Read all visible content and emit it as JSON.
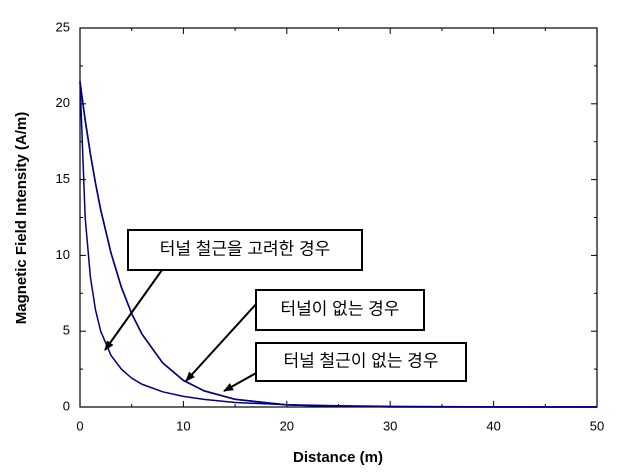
{
  "chart_data": {
    "type": "line",
    "x_label": "Distance (m)",
    "y_label": "Magnetic Field Intensity (A/m)",
    "x": [
      0,
      0.5,
      1,
      1.5,
      2,
      3,
      4,
      5,
      6,
      8,
      10,
      12,
      15,
      20,
      25,
      30,
      40,
      50
    ],
    "series": [
      {
        "name": "터널 철근을 고려한 경우",
        "color": "#000080",
        "values": [
          21.5,
          12.5,
          8.6,
          6.4,
          5.0,
          3.4,
          2.5,
          1.9,
          1.5,
          1.0,
          0.7,
          0.5,
          0.3,
          0.15,
          0.08,
          0.04,
          0.01,
          0
        ]
      },
      {
        "name": "터널이 없는 경우",
        "color": "#000080",
        "values": [
          21.5,
          18.97,
          16.74,
          14.77,
          13.04,
          10.16,
          7.91,
          6.16,
          4.8,
          2.91,
          1.76,
          1.07,
          0.51,
          0.14,
          0.04,
          0.01,
          0,
          0
        ]
      },
      {
        "name": "터널 철근이 없는 경우",
        "color": "#000080",
        "values": [
          21.4,
          18.9,
          16.7,
          14.75,
          13.0,
          10.15,
          7.9,
          6.15,
          4.8,
          2.9,
          1.75,
          1.06,
          0.5,
          0.14,
          0.04,
          0.01,
          0,
          0
        ]
      }
    ],
    "xlim": [
      0,
      50
    ],
    "xticks": [
      0,
      10,
      20,
      30,
      40,
      50
    ],
    "ylim": [
      0,
      25
    ],
    "yticks": [
      0,
      5,
      10,
      15,
      20,
      25
    ]
  }
}
